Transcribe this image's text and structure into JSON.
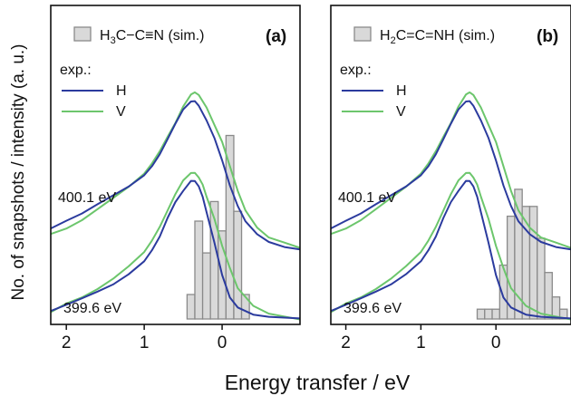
{
  "chart_data": {
    "type": "line",
    "ylabel": "No. of snapshots / intensity (a. u.)",
    "xlabel": "Energy transfer  / eV",
    "colors": {
      "H": "#2b3b9e",
      "V": "#6cc66c",
      "hist_fill": "#d9d9d9",
      "hist_edge": "#8a8a8a"
    },
    "panels": [
      {
        "tag": "(a)",
        "hist_label": {
          "pre": "H",
          "sub1": "3",
          "post": "C",
          "dash": "−",
          "rest": "C≡N (sim.)"
        },
        "exp_label": "exp.:",
        "series_names": [
          "H",
          "V"
        ],
        "xlim": [
          2.2,
          -1.0
        ],
        "xticks": [
          2,
          1,
          0
        ],
        "energies": [
          "400.1 eV",
          "399.6 eV"
        ],
        "curves": {
          "upper_H": [
            [
              2.2,
              0.4
            ],
            [
              2.0,
              0.43
            ],
            [
              1.8,
              0.46
            ],
            [
              1.6,
              0.5
            ],
            [
              1.4,
              0.54
            ],
            [
              1.2,
              0.58
            ],
            [
              1.0,
              0.63
            ],
            [
              0.9,
              0.67
            ],
            [
              0.8,
              0.72
            ],
            [
              0.7,
              0.78
            ],
            [
              0.6,
              0.84
            ],
            [
              0.5,
              0.89
            ],
            [
              0.4,
              0.92
            ],
            [
              0.35,
              0.92
            ],
            [
              0.3,
              0.9
            ],
            [
              0.2,
              0.84
            ],
            [
              0.1,
              0.77
            ],
            [
              0.0,
              0.68
            ],
            [
              -0.1,
              0.58
            ],
            [
              -0.2,
              0.5
            ],
            [
              -0.3,
              0.44
            ],
            [
              -0.45,
              0.39
            ],
            [
              -0.6,
              0.36
            ],
            [
              -0.8,
              0.34
            ],
            [
              -1.0,
              0.33
            ]
          ],
          "upper_V": [
            [
              2.2,
              0.4
            ],
            [
              2.0,
              0.42
            ],
            [
              1.8,
              0.45
            ],
            [
              1.6,
              0.49
            ],
            [
              1.4,
              0.53
            ],
            [
              1.2,
              0.57
            ],
            [
              1.0,
              0.62
            ],
            [
              0.9,
              0.66
            ],
            [
              0.8,
              0.71
            ],
            [
              0.7,
              0.77
            ],
            [
              0.6,
              0.83
            ],
            [
              0.5,
              0.9
            ],
            [
              0.4,
              0.95
            ],
            [
              0.35,
              0.96
            ],
            [
              0.3,
              0.95
            ],
            [
              0.2,
              0.9
            ],
            [
              0.1,
              0.83
            ],
            [
              0.0,
              0.76
            ],
            [
              -0.1,
              0.66
            ],
            [
              -0.2,
              0.56
            ],
            [
              -0.3,
              0.48
            ],
            [
              -0.45,
              0.41
            ],
            [
              -0.6,
              0.37
            ],
            [
              -0.8,
              0.35
            ],
            [
              -1.0,
              0.33
            ]
          ],
          "lower_H": [
            [
              2.2,
              0.03
            ],
            [
              2.0,
              0.06
            ],
            [
              1.8,
              0.09
            ],
            [
              1.6,
              0.12
            ],
            [
              1.4,
              0.15
            ],
            [
              1.2,
              0.19
            ],
            [
              1.0,
              0.24
            ],
            [
              0.9,
              0.28
            ],
            [
              0.8,
              0.33
            ],
            [
              0.7,
              0.4
            ],
            [
              0.6,
              0.46
            ],
            [
              0.5,
              0.51
            ],
            [
              0.4,
              0.55
            ],
            [
              0.35,
              0.55
            ],
            [
              0.3,
              0.53
            ],
            [
              0.25,
              0.49
            ],
            [
              0.2,
              0.43
            ],
            [
              0.1,
              0.31
            ],
            [
              0.0,
              0.18
            ],
            [
              -0.1,
              0.09
            ],
            [
              -0.2,
              0.05
            ],
            [
              -0.4,
              0.02
            ],
            [
              -0.6,
              0.01
            ],
            [
              -0.8,
              0.005
            ],
            [
              -1.0,
              0.0
            ]
          ],
          "lower_V": [
            [
              2.2,
              0.03
            ],
            [
              2.0,
              0.06
            ],
            [
              1.8,
              0.08
            ],
            [
              1.6,
              0.11
            ],
            [
              1.4,
              0.15
            ],
            [
              1.2,
              0.2
            ],
            [
              1.0,
              0.26
            ],
            [
              0.9,
              0.31
            ],
            [
              0.8,
              0.37
            ],
            [
              0.7,
              0.44
            ],
            [
              0.6,
              0.51
            ],
            [
              0.5,
              0.56
            ],
            [
              0.4,
              0.59
            ],
            [
              0.35,
              0.59
            ],
            [
              0.3,
              0.57
            ],
            [
              0.25,
              0.54
            ],
            [
              0.2,
              0.49
            ],
            [
              0.1,
              0.4
            ],
            [
              0.0,
              0.29
            ],
            [
              -0.1,
              0.2
            ],
            [
              -0.2,
              0.12
            ],
            [
              -0.4,
              0.05
            ],
            [
              -0.6,
              0.02
            ],
            [
              -0.8,
              0.01
            ],
            [
              -1.0,
              0.0
            ]
          ]
        },
        "histogram": {
          "bin_width": 0.1,
          "bins": [
            [
              0.4,
              0.1
            ],
            [
              0.3,
              0.4
            ],
            [
              0.2,
              0.27
            ],
            [
              0.1,
              0.48
            ],
            [
              0.0,
              0.36
            ],
            [
              -0.1,
              0.75
            ],
            [
              -0.2,
              0.44
            ],
            [
              -0.3,
              0.1
            ]
          ]
        }
      },
      {
        "tag": "(b)",
        "hist_label": {
          "pre": "H",
          "sub1": "2",
          "post": "C=C=NH (sim.)"
        },
        "exp_label": "exp.:",
        "series_names": [
          "H",
          "V"
        ],
        "xlim": [
          2.2,
          -1.0
        ],
        "xticks": [
          2,
          1,
          0
        ],
        "energies": [
          "400.1 eV",
          "399.6 eV"
        ],
        "curves": {
          "upper_H": [
            [
              2.2,
              0.4
            ],
            [
              2.0,
              0.43
            ],
            [
              1.8,
              0.46
            ],
            [
              1.6,
              0.5
            ],
            [
              1.4,
              0.54
            ],
            [
              1.2,
              0.58
            ],
            [
              1.0,
              0.63
            ],
            [
              0.9,
              0.67
            ],
            [
              0.8,
              0.72
            ],
            [
              0.7,
              0.78
            ],
            [
              0.6,
              0.84
            ],
            [
              0.5,
              0.89
            ],
            [
              0.4,
              0.92
            ],
            [
              0.35,
              0.92
            ],
            [
              0.3,
              0.9
            ],
            [
              0.2,
              0.84
            ],
            [
              0.1,
              0.77
            ],
            [
              0.0,
              0.68
            ],
            [
              -0.1,
              0.58
            ],
            [
              -0.2,
              0.5
            ],
            [
              -0.3,
              0.44
            ],
            [
              -0.45,
              0.39
            ],
            [
              -0.6,
              0.36
            ],
            [
              -0.8,
              0.34
            ],
            [
              -1.0,
              0.33
            ]
          ],
          "upper_V": [
            [
              2.2,
              0.4
            ],
            [
              2.0,
              0.42
            ],
            [
              1.8,
              0.45
            ],
            [
              1.6,
              0.49
            ],
            [
              1.4,
              0.53
            ],
            [
              1.2,
              0.57
            ],
            [
              1.0,
              0.62
            ],
            [
              0.9,
              0.66
            ],
            [
              0.8,
              0.71
            ],
            [
              0.7,
              0.77
            ],
            [
              0.6,
              0.83
            ],
            [
              0.5,
              0.9
            ],
            [
              0.4,
              0.95
            ],
            [
              0.35,
              0.96
            ],
            [
              0.3,
              0.95
            ],
            [
              0.2,
              0.9
            ],
            [
              0.1,
              0.83
            ],
            [
              0.0,
              0.76
            ],
            [
              -0.1,
              0.66
            ],
            [
              -0.2,
              0.56
            ],
            [
              -0.3,
              0.48
            ],
            [
              -0.45,
              0.41
            ],
            [
              -0.6,
              0.37
            ],
            [
              -0.8,
              0.35
            ],
            [
              -1.0,
              0.33
            ]
          ],
          "lower_H": [
            [
              2.2,
              0.03
            ],
            [
              2.0,
              0.06
            ],
            [
              1.8,
              0.09
            ],
            [
              1.6,
              0.12
            ],
            [
              1.4,
              0.15
            ],
            [
              1.2,
              0.19
            ],
            [
              1.0,
              0.24
            ],
            [
              0.9,
              0.28
            ],
            [
              0.8,
              0.33
            ],
            [
              0.7,
              0.4
            ],
            [
              0.6,
              0.46
            ],
            [
              0.5,
              0.51
            ],
            [
              0.4,
              0.55
            ],
            [
              0.35,
              0.55
            ],
            [
              0.3,
              0.53
            ],
            [
              0.25,
              0.49
            ],
            [
              0.2,
              0.43
            ],
            [
              0.1,
              0.31
            ],
            [
              0.0,
              0.18
            ],
            [
              -0.1,
              0.09
            ],
            [
              -0.2,
              0.05
            ],
            [
              -0.4,
              0.02
            ],
            [
              -0.6,
              0.01
            ],
            [
              -0.8,
              0.005
            ],
            [
              -1.0,
              0.0
            ]
          ],
          "lower_V": [
            [
              2.2,
              0.03
            ],
            [
              2.0,
              0.06
            ],
            [
              1.8,
              0.08
            ],
            [
              1.6,
              0.11
            ],
            [
              1.4,
              0.15
            ],
            [
              1.2,
              0.2
            ],
            [
              1.0,
              0.26
            ],
            [
              0.9,
              0.31
            ],
            [
              0.8,
              0.37
            ],
            [
              0.7,
              0.44
            ],
            [
              0.6,
              0.51
            ],
            [
              0.5,
              0.56
            ],
            [
              0.4,
              0.59
            ],
            [
              0.35,
              0.59
            ],
            [
              0.3,
              0.57
            ],
            [
              0.25,
              0.54
            ],
            [
              0.2,
              0.49
            ],
            [
              0.1,
              0.4
            ],
            [
              0.0,
              0.29
            ],
            [
              -0.1,
              0.2
            ],
            [
              -0.2,
              0.12
            ],
            [
              -0.4,
              0.05
            ],
            [
              -0.6,
              0.02
            ],
            [
              -0.8,
              0.01
            ],
            [
              -1.0,
              0.0
            ]
          ]
        },
        "histogram": {
          "bin_width": 0.1,
          "bins": [
            [
              0.2,
              0.04
            ],
            [
              0.1,
              0.04
            ],
            [
              0.0,
              0.04
            ],
            [
              -0.1,
              0.22
            ],
            [
              -0.2,
              0.42
            ],
            [
              -0.3,
              0.53
            ],
            [
              -0.4,
              0.46
            ],
            [
              -0.5,
              0.46
            ],
            [
              -0.6,
              0.33
            ],
            [
              -0.7,
              0.19
            ],
            [
              -0.8,
              0.09
            ],
            [
              -0.9,
              0.04
            ]
          ]
        }
      }
    ]
  }
}
